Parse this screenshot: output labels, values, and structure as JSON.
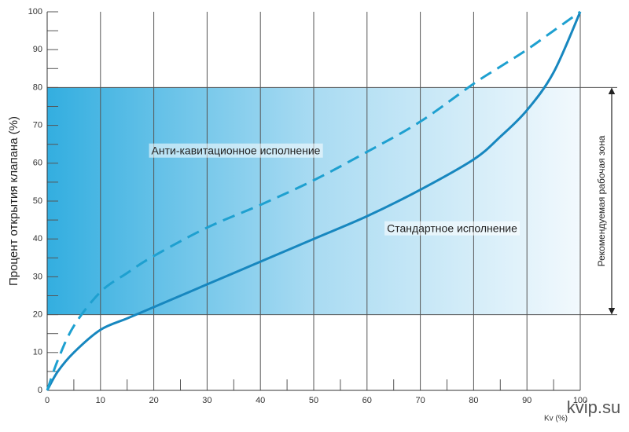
{
  "chart_data": {
    "type": "line",
    "y_label": "Процент открытия клапана (%)",
    "x_label": "Kv (%)",
    "watermark": "kvip.su",
    "x": [
      0,
      2,
      5,
      10,
      15,
      20,
      30,
      40,
      50,
      60,
      70,
      80,
      85,
      90,
      95,
      100
    ],
    "series": [
      {
        "name": "Стандартное исполнение",
        "color": "#1787bf",
        "dashed": false,
        "values": [
          0,
          5,
          10,
          16,
          19,
          22,
          28,
          34,
          40,
          46,
          53,
          61,
          67,
          74,
          84,
          100
        ]
      },
      {
        "name": "Анти-кавитационное исполнение",
        "color": "#1ea0d0",
        "dashed": true,
        "values": [
          0,
          8,
          17,
          26,
          31,
          35.5,
          43,
          49,
          55.5,
          63,
          71,
          81,
          85.5,
          90,
          95,
          100
        ]
      }
    ],
    "zone": {
      "range": [
        20,
        80
      ],
      "label": "Рекомендуемая рабочая зона"
    },
    "xlim": [
      0,
      100
    ],
    "ylim": [
      0,
      100
    ],
    "xticks": [
      0,
      10,
      20,
      30,
      40,
      50,
      60,
      70,
      80,
      90,
      100
    ],
    "yticks": [
      0,
      10,
      20,
      30,
      40,
      50,
      60,
      70,
      80,
      90,
      100
    ],
    "xminorticks": [
      5,
      15,
      25,
      35,
      45,
      55,
      65,
      75,
      85,
      95
    ],
    "yminorticks": [
      5,
      15,
      25,
      35,
      45,
      55,
      65,
      75,
      85,
      95
    ],
    "grid": true
  }
}
